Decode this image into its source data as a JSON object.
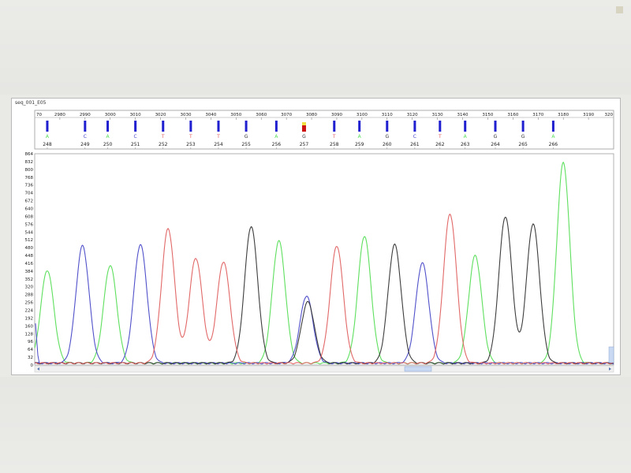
{
  "window": {
    "title": "seq_001_E05"
  },
  "colors": {
    "A": "#55dd55",
    "C": "#4848c8",
    "G": "#333333",
    "T": "#e06060",
    "marker": "#1f1fd0",
    "flag_red": "#cc1111",
    "flag_yellow": "#f0e040"
  },
  "chart_data": {
    "type": "line",
    "title": "",
    "xlabel": "",
    "ylabel": "",
    "ylim": [
      0,
      864
    ],
    "xlim": [
      2970,
      3200
    ],
    "scan_ticks": [
      2980,
      2990,
      3000,
      3010,
      3020,
      3030,
      3040,
      3050,
      3060,
      3070,
      3080,
      3090,
      3100,
      3110,
      3120,
      3130,
      3140,
      3150,
      3160,
      3170,
      3180,
      3190
    ],
    "scan_tick_labels": [
      "2980",
      "2990",
      "3000",
      "3010",
      "3020",
      "3030",
      "3040",
      "3050",
      "3060",
      "3070",
      "3080",
      "3090",
      "3100",
      "3110",
      "3120",
      "3130",
      "3140",
      "3150",
      "3160",
      "3170",
      "3180",
      "3190"
    ],
    "scan_edge_labels": [
      "70",
      "320"
    ],
    "y_ticks": [
      0,
      32,
      64,
      96,
      128,
      160,
      192,
      224,
      256,
      288,
      320,
      352,
      384,
      416,
      448,
      480,
      512,
      544,
      576,
      608,
      640,
      672,
      704,
      736,
      768,
      800,
      832,
      864
    ],
    "base_calls": [
      {
        "index": "248",
        "base": "A",
        "scan": 2975
      },
      {
        "index": "249",
        "base": "C",
        "scan": 2990
      },
      {
        "index": "250",
        "base": "A",
        "scan": 2999
      },
      {
        "index": "251",
        "base": "C",
        "scan": 3010
      },
      {
        "index": "252",
        "base": "T",
        "scan": 3021
      },
      {
        "index": "253",
        "base": "T",
        "scan": 3032
      },
      {
        "index": "254",
        "base": "T",
        "scan": 3043
      },
      {
        "index": "255",
        "base": "G",
        "scan": 3054
      },
      {
        "index": "256",
        "base": "A",
        "scan": 3066
      },
      {
        "index": "257",
        "base": "G",
        "scan": 3077
      },
      {
        "index": "258",
        "base": "T",
        "scan": 3089
      },
      {
        "index": "259",
        "base": "A",
        "scan": 3099
      },
      {
        "index": "260",
        "base": "G",
        "scan": 3110
      },
      {
        "index": "261",
        "base": "C",
        "scan": 3121
      },
      {
        "index": "262",
        "base": "T",
        "scan": 3131
      },
      {
        "index": "263",
        "base": "A",
        "scan": 3141
      },
      {
        "index": "264",
        "base": "G",
        "scan": 3153
      },
      {
        "index": "265",
        "base": "G",
        "scan": 3164
      },
      {
        "index": "266",
        "base": "A",
        "scan": 3176
      }
    ],
    "peaks": [
      {
        "base": "A",
        "scan": 2975,
        "value": 380
      },
      {
        "base": "C",
        "scan": 2989,
        "value": 480
      },
      {
        "base": "A",
        "scan": 3000,
        "value": 400
      },
      {
        "base": "C",
        "scan": 3012,
        "value": 485
      },
      {
        "base": "T",
        "scan": 3023,
        "value": 550
      },
      {
        "base": "T",
        "scan": 3034,
        "value": 430
      },
      {
        "base": "T",
        "scan": 3045,
        "value": 415
      },
      {
        "base": "G",
        "scan": 3056,
        "value": 560
      },
      {
        "base": "A",
        "scan": 3067,
        "value": 500
      },
      {
        "base": "C",
        "scan": 3078,
        "value": 275
      },
      {
        "base": "G",
        "scan": 3078.5,
        "value": 250
      },
      {
        "base": "T",
        "scan": 3090,
        "value": 480
      },
      {
        "base": "A",
        "scan": 3101,
        "value": 520
      },
      {
        "base": "G",
        "scan": 3113,
        "value": 485
      },
      {
        "base": "C",
        "scan": 3124,
        "value": 410
      },
      {
        "base": "T",
        "scan": 3135,
        "value": 610
      },
      {
        "base": "A",
        "scan": 3145,
        "value": 440
      },
      {
        "base": "G",
        "scan": 3157,
        "value": 600
      },
      {
        "base": "G",
        "scan": 3168,
        "value": 570
      },
      {
        "base": "A",
        "scan": 3180,
        "value": 820
      }
    ],
    "flagged_call_index": "257",
    "grid": false,
    "legend": "none"
  }
}
